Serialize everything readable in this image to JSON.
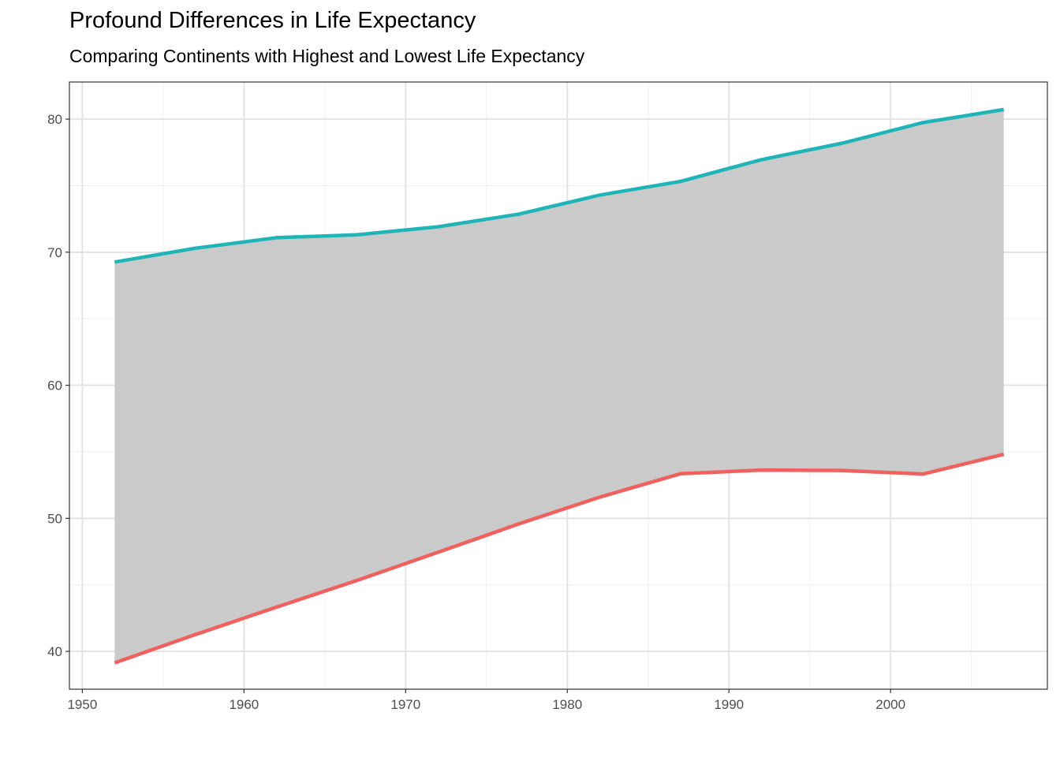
{
  "chart_data": {
    "type": "area",
    "title": "Profound Differences in Life Expectancy",
    "subtitle": "Comparing Continents with Highest and Lowest Life Expectancy",
    "xlabel": "",
    "ylabel": "",
    "x": [
      1952,
      1957,
      1962,
      1967,
      1972,
      1977,
      1982,
      1987,
      1992,
      1997,
      2002,
      2007
    ],
    "series": [
      {
        "values": [
          69.26,
          70.3,
          71.09,
          71.31,
          71.91,
          72.86,
          74.29,
          75.32,
          76.95,
          78.19,
          79.74,
          80.72
        ],
        "color": "#1FB5B8"
      },
      {
        "values": [
          39.14,
          41.27,
          43.32,
          45.34,
          47.45,
          49.58,
          51.59,
          53.35,
          53.63,
          53.6,
          53.33,
          54.81
        ],
        "color": "#F0605D"
      }
    ],
    "ribbon_color": "#CACACA",
    "xlim": [
      1949.2,
      2009.7
    ],
    "ylim": [
      37.16,
      82.79
    ],
    "xticks": [
      "1950",
      "1960",
      "1970",
      "1980",
      "1990",
      "2000"
    ],
    "yticks": [
      "40",
      "50",
      "60",
      "70",
      "80"
    ],
    "grid": true,
    "legend": "none"
  }
}
